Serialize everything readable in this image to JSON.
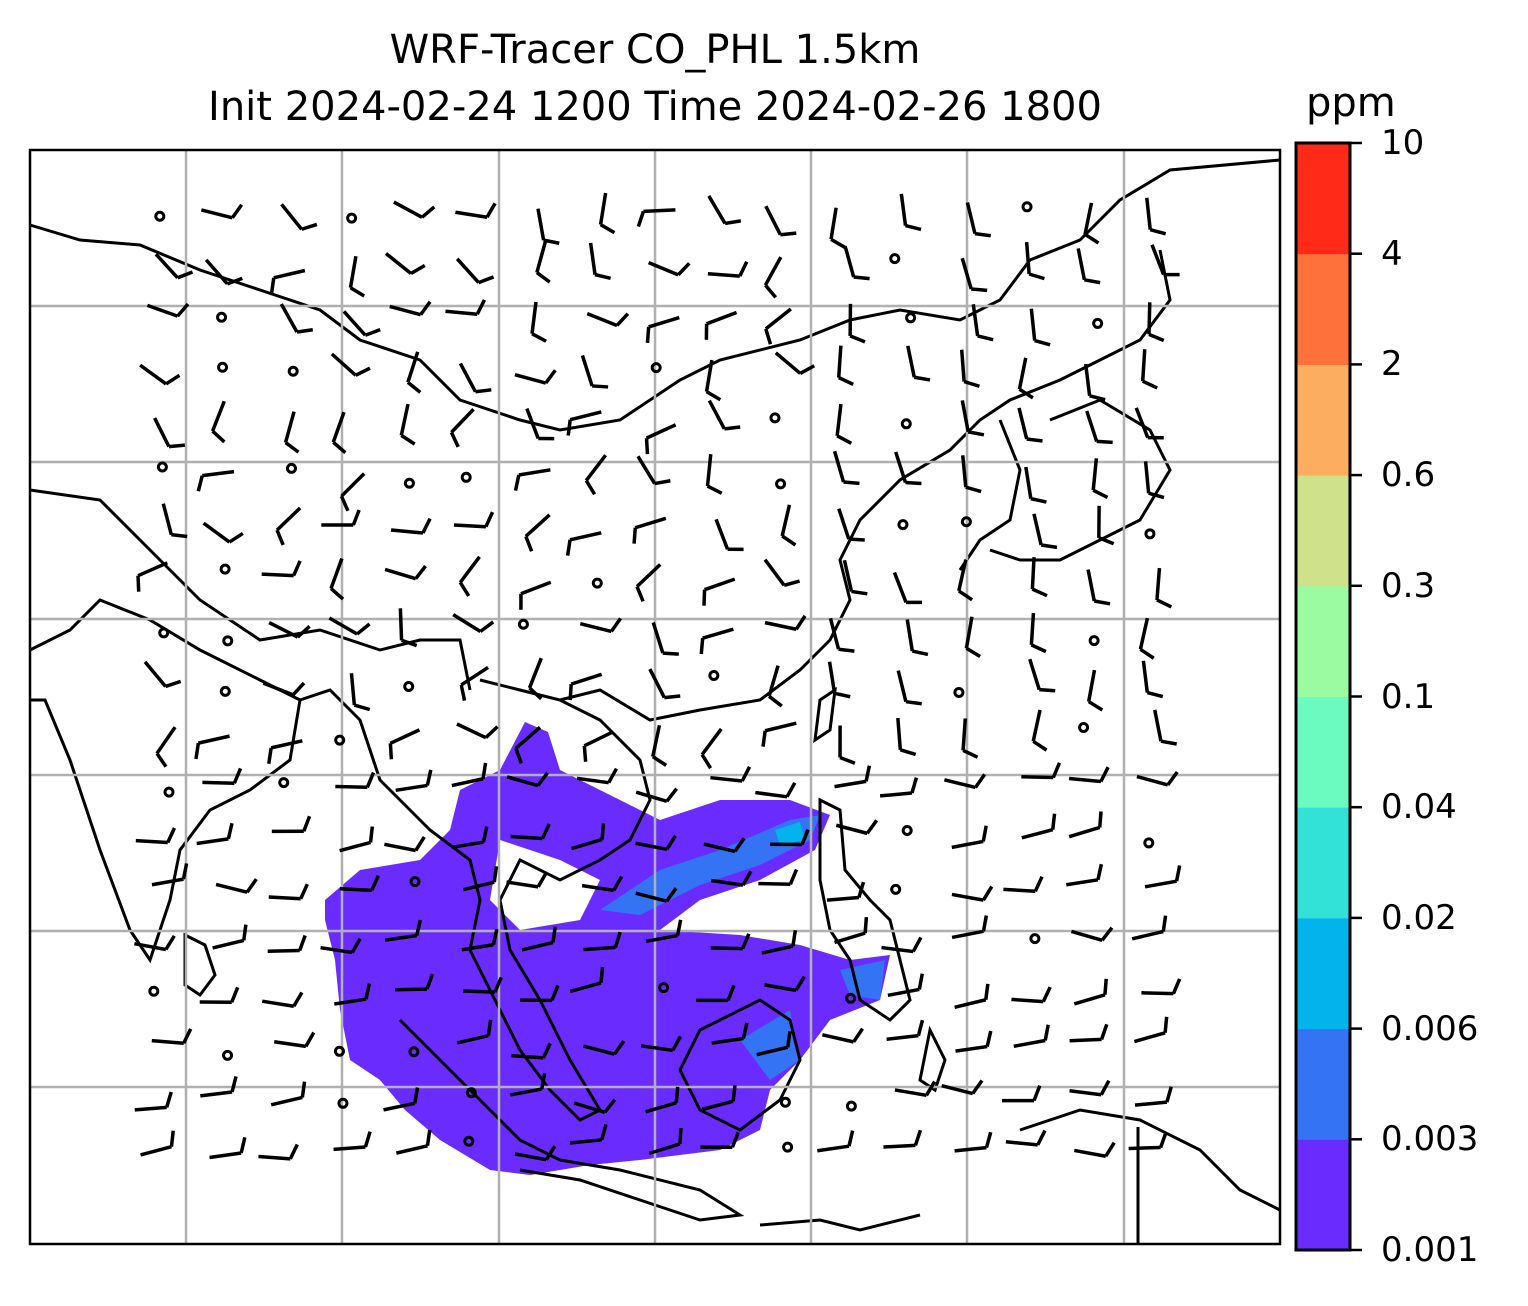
{
  "title": {
    "line1": "WRF-Tracer CO_PHL 1.5km",
    "line2": "Init 2024-02-24 1200 Time 2024-02-26 1800"
  },
  "colorbar": {
    "unit": "ppm",
    "ticks": [
      "0.001",
      "0.003",
      "0.006",
      "0.02",
      "0.04",
      "0.1",
      "0.3",
      "0.6",
      "2",
      "4",
      "10"
    ],
    "colors": [
      "#6a2bff",
      "#3573f5",
      "#02b3ec",
      "#33e2d6",
      "#6bfbc1",
      "#9afba0",
      "#cfe18a",
      "#fcad60",
      "#fe713b",
      "#ff2a17"
    ]
  },
  "map": {
    "plume_color": "#6a2bff",
    "plume_core_color": "#3573f5",
    "plume_peak_color": "#02b3ec"
  }
}
